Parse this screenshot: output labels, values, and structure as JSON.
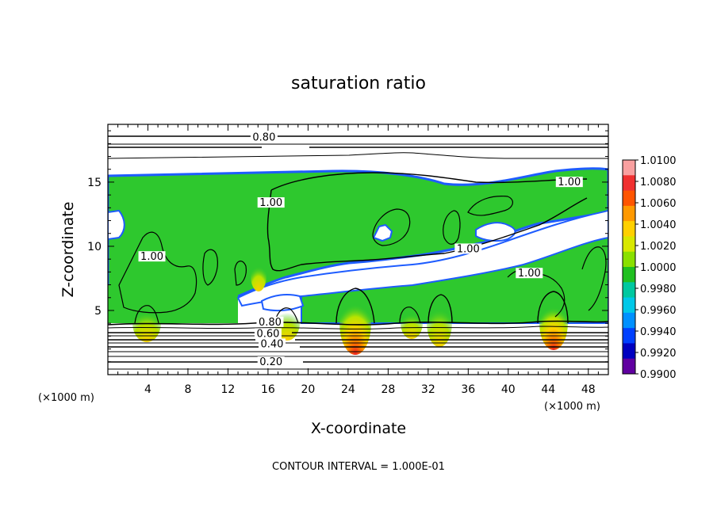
{
  "chart_data": {
    "type": "heatmap",
    "title": "saturation ratio",
    "xlabel": "X-coordinate",
    "ylabel": "Z-coordinate",
    "x_unit": "(×1000 m)",
    "z_unit": "(×1000 m)",
    "xlim": [
      0,
      50
    ],
    "ylim": [
      0,
      19.5
    ],
    "x_ticks": [
      4,
      8,
      12,
      16,
      20,
      24,
      28,
      32,
      36,
      40,
      44,
      48
    ],
    "y_ticks": [
      5,
      10,
      15
    ],
    "footer": "CONTOUR INTERVAL = 1.000E-01",
    "colorbar": {
      "min": 0.99,
      "max": 1.01,
      "labels": [
        "1.0100",
        "1.0080",
        "1.0060",
        "1.0040",
        "1.0020",
        "1.0000",
        "0.9980",
        "0.9960",
        "0.9940",
        "0.9920",
        "0.9900"
      ],
      "colors": [
        "#f9a0a0",
        "#f03030",
        "#ff5500",
        "#ff9900",
        "#ffd000",
        "#d8e800",
        "#8ae000",
        "#20c020",
        "#00c8a0",
        "#00c8e8",
        "#0090ff",
        "#0040ff",
        "#0000c0",
        "#6000a0"
      ]
    },
    "contour_labels": [
      {
        "text": "0.80",
        "x": 15.6,
        "z": 18.3
      },
      {
        "text": "1.00",
        "x": 16.3,
        "z": 13.2
      },
      {
        "text": "1.00",
        "x": 4.4,
        "z": 9.0
      },
      {
        "text": "1.00",
        "x": 36.0,
        "z": 9.6
      },
      {
        "text": "1.00",
        "x": 42.1,
        "z": 7.7
      },
      {
        "text": "1.00",
        "x": 46.1,
        "z": 14.8
      },
      {
        "text": "0.80",
        "x": 16.2,
        "z": 3.9
      },
      {
        "text": "0.60",
        "x": 16.0,
        "z": 3.0
      },
      {
        "text": "0.40",
        "x": 16.4,
        "z": 2.2
      },
      {
        "text": "0.20",
        "x": 16.3,
        "z": 0.8
      }
    ],
    "colors": {
      "cloud": "#2ec82e",
      "frame": "#000000"
    }
  }
}
